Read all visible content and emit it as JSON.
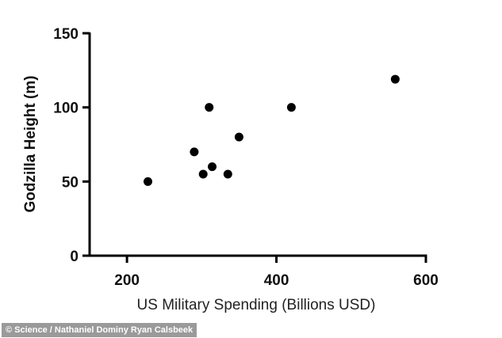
{
  "chart_data": {
    "type": "scatter",
    "xlabel": "US Military Spending (Billions USD)",
    "ylabel": "Godzilla Height (m)",
    "xlim": [
      150,
      600
    ],
    "ylim": [
      0,
      150
    ],
    "x_ticks": [
      200,
      400,
      600
    ],
    "y_ticks": [
      0,
      50,
      100,
      150
    ],
    "grid": false,
    "points": [
      {
        "x": 228,
        "y": 50
      },
      {
        "x": 290,
        "y": 70
      },
      {
        "x": 302,
        "y": 55
      },
      {
        "x": 310,
        "y": 100
      },
      {
        "x": 314,
        "y": 60
      },
      {
        "x": 335,
        "y": 55
      },
      {
        "x": 350,
        "y": 80
      },
      {
        "x": 420,
        "y": 100
      },
      {
        "x": 559,
        "y": 119
      }
    ],
    "marker_color": "#000000",
    "axis_color": "#000000"
  },
  "credit": "© Science / Nathaniel Dominy Ryan Calsbeek"
}
